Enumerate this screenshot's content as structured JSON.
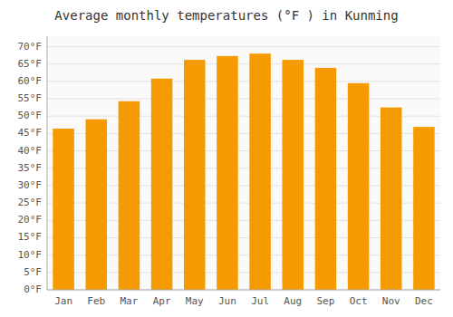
{
  "chart_data": {
    "type": "bar",
    "title": "Average monthly temperatures (°F ) in Kunming",
    "categories": [
      "Jan",
      "Feb",
      "Mar",
      "Apr",
      "May",
      "Jun",
      "Jul",
      "Aug",
      "Sep",
      "Oct",
      "Nov",
      "Dec"
    ],
    "values": [
      46.4,
      49.1,
      54.3,
      60.8,
      66.2,
      67.3,
      68.0,
      66.2,
      63.9,
      59.5,
      52.5,
      46.9
    ],
    "color": "#F59A00",
    "ylim": [
      0,
      73
    ],
    "yticks": [
      {
        "value": 0,
        "label": "0°F"
      },
      {
        "value": 5,
        "label": "5°F"
      },
      {
        "value": 10,
        "label": "10°F"
      },
      {
        "value": 15,
        "label": "15°F"
      },
      {
        "value": 20,
        "label": "20°F"
      },
      {
        "value": 25,
        "label": "25°F"
      },
      {
        "value": 30,
        "label": "30°F"
      },
      {
        "value": 35,
        "label": "35°F"
      },
      {
        "value": 40,
        "label": "40°F"
      },
      {
        "value": 45,
        "label": "45°F"
      },
      {
        "value": 50,
        "label": "50°F"
      },
      {
        "value": 55,
        "label": "55°F"
      },
      {
        "value": 60,
        "label": "60°F"
      },
      {
        "value": 65,
        "label": "65°F"
      },
      {
        "value": 70,
        "label": "70°F"
      }
    ],
    "grid": true
  }
}
